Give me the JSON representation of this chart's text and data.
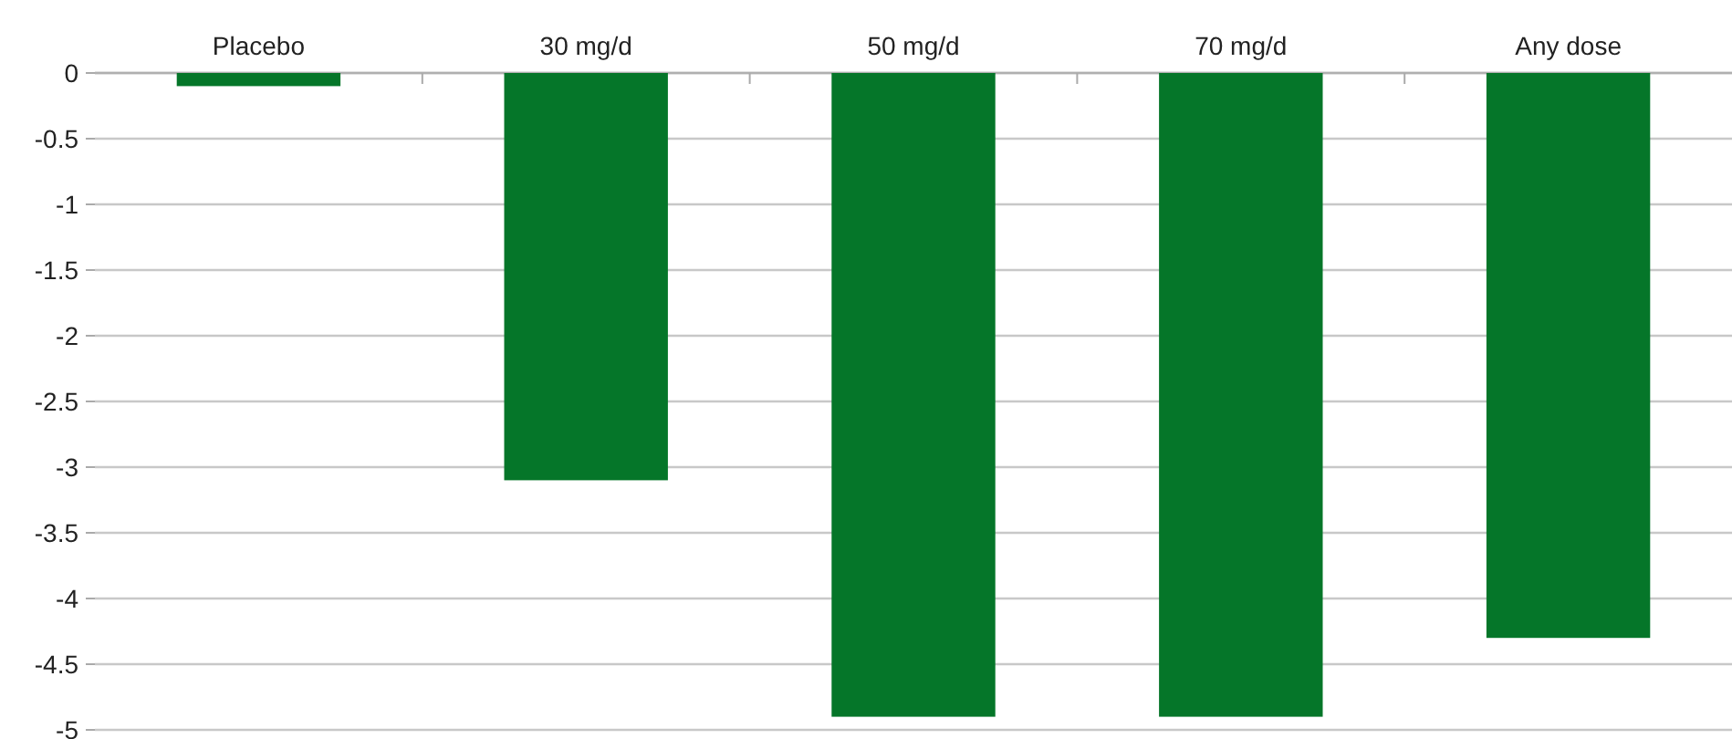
{
  "chart_data": {
    "type": "bar",
    "categories": [
      "Placebo",
      "30 mg/d",
      "50 mg/d",
      "70 mg/d",
      "Any dose"
    ],
    "values": [
      -0.1,
      -3.1,
      -4.9,
      -4.9,
      -4.3
    ],
    "color": "#057629",
    "ylim": [
      -5,
      0
    ],
    "yticks": [
      0,
      -0.5,
      -1,
      -1.5,
      -2,
      -2.5,
      -3,
      -3.5,
      -4,
      -4.5,
      -5
    ],
    "grid": "y"
  }
}
